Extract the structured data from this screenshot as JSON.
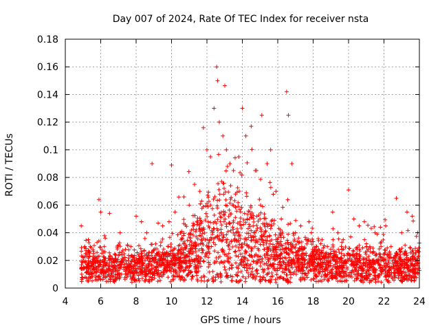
{
  "chart_data": {
    "type": "scatter",
    "title": "Day 007 of 2024, Rate Of TEC Index for receiver nsta",
    "xlabel": "GPS time / hours",
    "ylabel": "ROTI / TECUs",
    "xlim": [
      4,
      24
    ],
    "ylim": [
      0,
      0.18
    ],
    "xticks": [
      "4",
      "6",
      "8",
      "10",
      "12",
      "14",
      "16",
      "18",
      "20",
      "22",
      "24"
    ],
    "yticks": [
      "0",
      "0.02",
      "0.04",
      "0.06",
      "0.08",
      "0.1",
      "0.12",
      "0.14",
      "0.16",
      "0.18"
    ],
    "grid": true,
    "marker": "+",
    "series": [
      {
        "name": "ROTI",
        "color": "#ff0000",
        "x": [
          4.9,
          5.1,
          5.3,
          5.6,
          5.9,
          6.0,
          6.2,
          6.5,
          6.8,
          7.1,
          7.4,
          7.7,
          8.0,
          8.3,
          8.6,
          8.9,
          9.2,
          9.5,
          9.8,
          10.0,
          10.2,
          10.5,
          10.7,
          11.0,
          11.3,
          11.6,
          11.8,
          12.0,
          12.2,
          12.4,
          12.55,
          12.6,
          12.7,
          12.9,
          13.1,
          13.3,
          13.5,
          13.8,
          14.0,
          14.2,
          14.5,
          14.8,
          15.1,
          15.4,
          15.6,
          15.9,
          16.2,
          16.5,
          16.6,
          16.8,
          17.0,
          17.3,
          17.6,
          17.9,
          18.2,
          18.5,
          18.8,
          19.1,
          19.4,
          19.7,
          20.0,
          20.3,
          20.6,
          20.9,
          21.2,
          21.5,
          21.8,
          22.1,
          22.4,
          22.7,
          23.0,
          23.3,
          23.6,
          23.9
        ],
        "y": [
          0.045,
          0.03,
          0.035,
          0.025,
          0.064,
          0.055,
          0.03,
          0.054,
          0.02,
          0.04,
          0.028,
          0.03,
          0.052,
          0.048,
          0.04,
          0.09,
          0.025,
          0.045,
          0.03,
          0.089,
          0.055,
          0.04,
          0.066,
          0.06,
          0.075,
          0.07,
          0.116,
          0.1,
          0.095,
          0.13,
          0.16,
          0.15,
          0.12,
          0.11,
          0.1,
          0.09,
          0.085,
          0.095,
          0.13,
          0.11,
          0.117,
          0.085,
          0.125,
          0.09,
          0.1,
          0.07,
          0.05,
          0.142,
          0.125,
          0.09,
          0.04,
          0.045,
          0.035,
          0.04,
          0.03,
          0.035,
          0.03,
          0.055,
          0.04,
          0.035,
          0.071,
          0.05,
          0.045,
          0.035,
          0.03,
          0.04,
          0.044,
          0.045,
          0.03,
          0.065,
          0.04,
          0.055,
          0.052,
          0.04
        ],
        "baseline_profile": {
          "hours": [
            4.9,
            8,
            10,
            11,
            12,
            13,
            14,
            15,
            16,
            16.5,
            17,
            18,
            20,
            22,
            24
          ],
          "typical": [
            0.015,
            0.015,
            0.018,
            0.025,
            0.035,
            0.04,
            0.035,
            0.028,
            0.025,
            0.022,
            0.02,
            0.018,
            0.016,
            0.016,
            0.015
          ],
          "spread": [
            0.012,
            0.012,
            0.015,
            0.025,
            0.035,
            0.04,
            0.035,
            0.03,
            0.025,
            0.02,
            0.018,
            0.015,
            0.014,
            0.014,
            0.013
          ]
        }
      }
    ]
  }
}
